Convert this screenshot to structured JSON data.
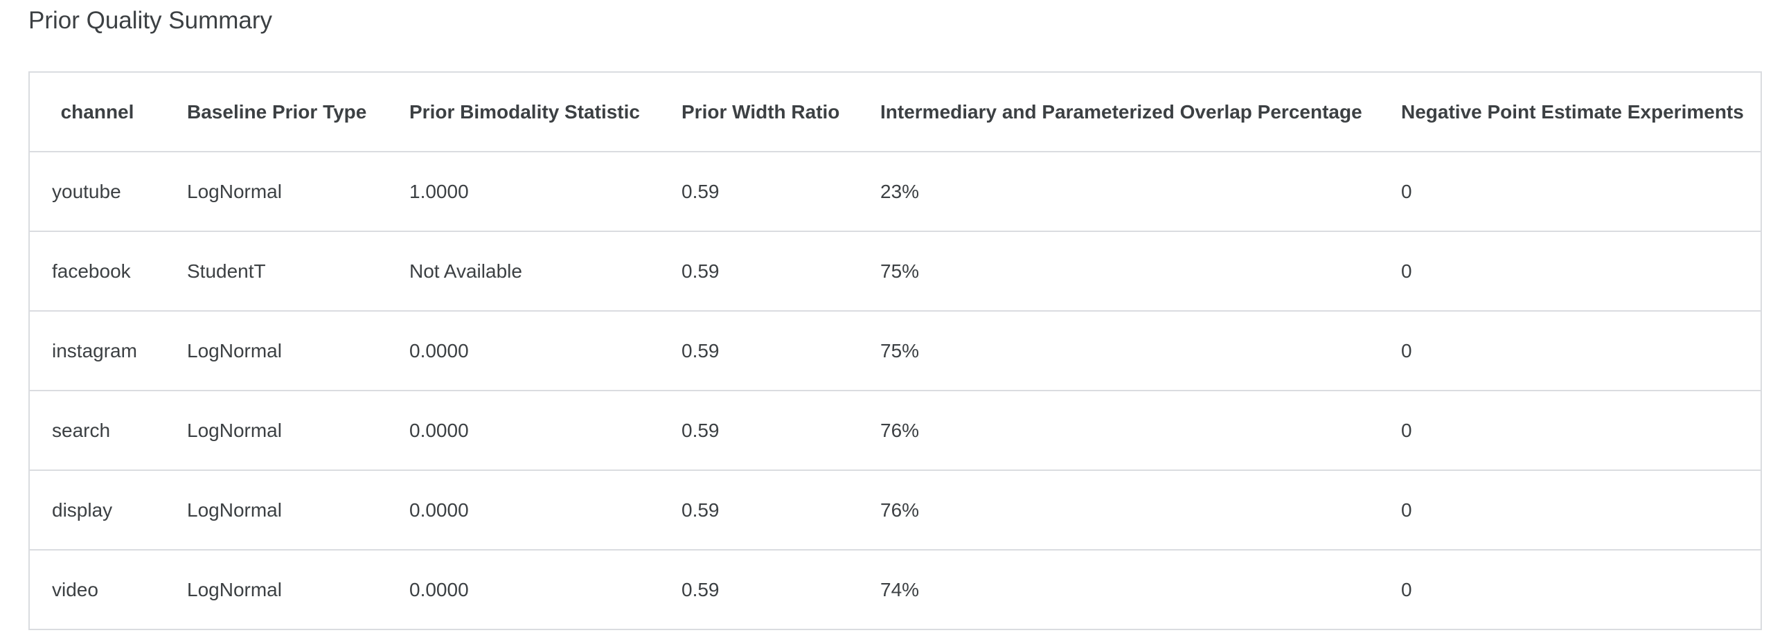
{
  "header": {
    "title": "Prior Quality Summary"
  },
  "table": {
    "headers": [
      "channel",
      "Baseline Prior Type",
      "Prior Bimodality Statistic",
      "Prior Width Ratio",
      "Intermediary and Parameterized Overlap Percentage",
      "Negative Point Estimate Experiments"
    ],
    "rows": [
      [
        "youtube",
        "LogNormal",
        "1.0000",
        "0.59",
        "23%",
        "0"
      ],
      [
        "facebook",
        "StudentT",
        "Not Available",
        "0.59",
        "75%",
        "0"
      ],
      [
        "instagram",
        "LogNormal",
        "0.0000",
        "0.59",
        "75%",
        "0"
      ],
      [
        "search",
        "LogNormal",
        "0.0000",
        "0.59",
        "76%",
        "0"
      ],
      [
        "display",
        "LogNormal",
        "0.0000",
        "0.59",
        "76%",
        "0"
      ],
      [
        "video",
        "LogNormal",
        "0.0000",
        "0.59",
        "74%",
        "0"
      ]
    ]
  }
}
